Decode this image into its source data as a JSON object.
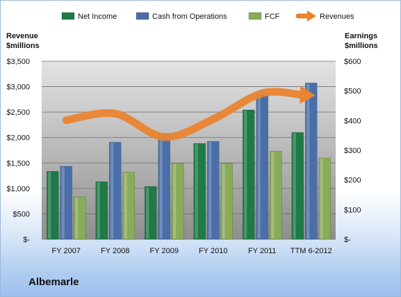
{
  "company": "Albemarle",
  "chart_data": {
    "type": "bar",
    "categories": [
      "FY 2007",
      "FY 2008",
      "FY 2009",
      "FY 2010",
      "FY 2011",
      "TTM 6-2012"
    ],
    "left_axis": {
      "title": "Revenue\n$millions",
      "range": [
        0,
        3500
      ],
      "ticks": [
        {
          "value": 0,
          "label": "$-"
        },
        {
          "value": 500,
          "label": "$500"
        },
        {
          "value": 1000,
          "label": "$1,000"
        },
        {
          "value": 1500,
          "label": "$1,500"
        },
        {
          "value": 2000,
          "label": "$2,000"
        },
        {
          "value": 2500,
          "label": "$2,500"
        },
        {
          "value": 3000,
          "label": "$3,000"
        },
        {
          "value": 3500,
          "label": "$3,500"
        }
      ]
    },
    "right_axis": {
      "title": "Earnings\n$millions",
      "range": [
        0,
        600
      ],
      "ticks": [
        {
          "value": 0,
          "label": "$-"
        },
        {
          "value": 100,
          "label": "$100"
        },
        {
          "value": 200,
          "label": "$200"
        },
        {
          "value": 300,
          "label": "$300"
        },
        {
          "value": 400,
          "label": "$400"
        },
        {
          "value": 500,
          "label": "$500"
        },
        {
          "value": 600,
          "label": "$600"
        }
      ]
    },
    "series": [
      {
        "name": "Net Income",
        "kind": "bar",
        "axis": "right",
        "color": "#1e7a47",
        "values": [
          229,
          194,
          178,
          323,
          436,
          360
        ]
      },
      {
        "name": "Cash from Operations",
        "kind": "bar",
        "axis": "right",
        "color": "#4a6fa8",
        "values": [
          246,
          327,
          357,
          330,
          488,
          527
        ]
      },
      {
        "name": "FCF",
        "kind": "bar",
        "axis": "right",
        "color": "#8aab5a",
        "values": [
          143,
          226,
          257,
          256,
          297,
          274
        ]
      },
      {
        "name": "Revenues",
        "kind": "line",
        "axis": "left",
        "color": "#e9842f",
        "values": [
          2340,
          2470,
          2010,
          2360,
          2870,
          2830
        ]
      }
    ],
    "legend_position": "top",
    "grid": true
  }
}
